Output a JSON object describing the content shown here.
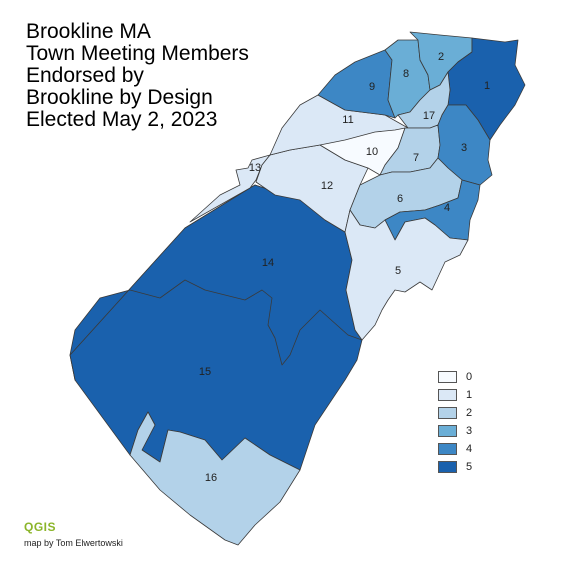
{
  "title_lines": [
    "Brookline MA",
    "Town Meeting Members",
    "Endorsed by",
    "Brookline by Design",
    "Elected May 2, 2023"
  ],
  "colors": {
    "0": "#f7fbff",
    "1": "#dbe8f6",
    "2": "#b3d2e9",
    "3": "#6aaed6",
    "4": "#3d87c5",
    "5": "#1a61ad"
  },
  "precincts": [
    {
      "id": "1",
      "value": 5
    },
    {
      "id": "2",
      "value": 3
    },
    {
      "id": "3",
      "value": 4
    },
    {
      "id": "4",
      "value": 4
    },
    {
      "id": "5",
      "value": 1
    },
    {
      "id": "6",
      "value": 2
    },
    {
      "id": "7",
      "value": 2
    },
    {
      "id": "8",
      "value": 3
    },
    {
      "id": "9",
      "value": 4
    },
    {
      "id": "10",
      "value": 0
    },
    {
      "id": "11",
      "value": 1
    },
    {
      "id": "12",
      "value": 1
    },
    {
      "id": "13",
      "value": 1
    },
    {
      "id": "14",
      "value": 5
    },
    {
      "id": "15",
      "value": 5
    },
    {
      "id": "16",
      "value": 2
    },
    {
      "id": "17",
      "value": 2
    }
  ],
  "legend": [
    {
      "label": "0",
      "color": "#f7fbff"
    },
    {
      "label": "1",
      "color": "#dbe8f6"
    },
    {
      "label": "2",
      "color": "#b3d2e9"
    },
    {
      "label": "3",
      "color": "#6aaed6"
    },
    {
      "label": "4",
      "color": "#3d87c5"
    },
    {
      "label": "5",
      "color": "#1a61ad"
    }
  ],
  "qgis_logo": "QGIS",
  "credit": "map by Tom Elwertowski"
}
